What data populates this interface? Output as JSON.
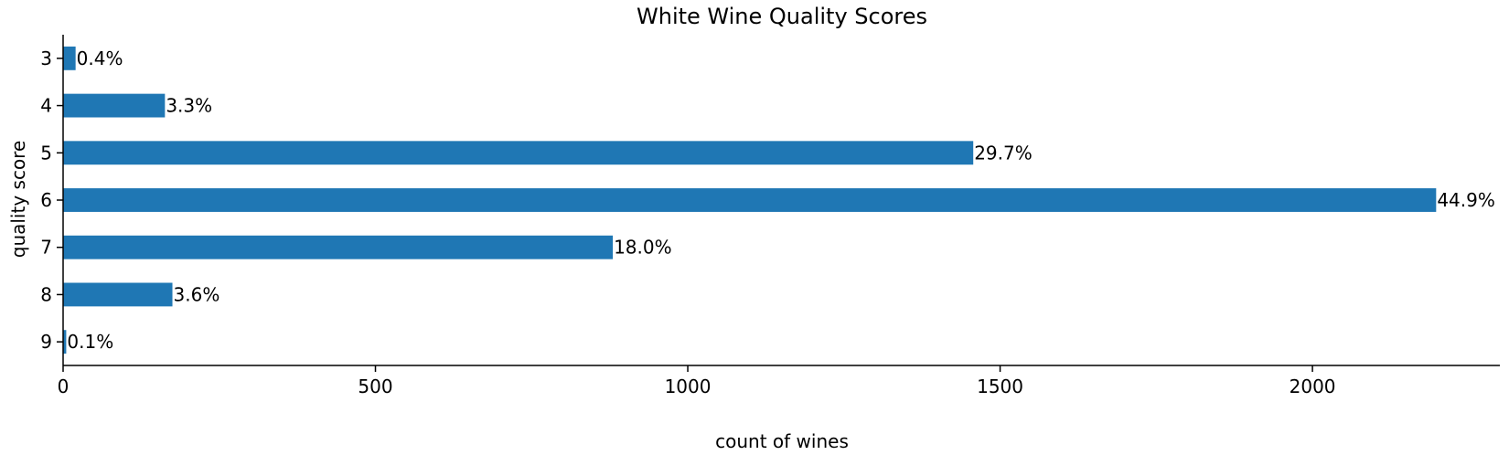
{
  "chart_data": {
    "type": "bar",
    "orientation": "horizontal",
    "title": "White Wine Quality Scores",
    "xlabel": "count of wines",
    "ylabel": "quality score",
    "categories": [
      "3",
      "4",
      "5",
      "6",
      "7",
      "8",
      "9"
    ],
    "values": [
      20,
      163,
      1457,
      2198,
      880,
      175,
      5
    ],
    "data_labels": [
      "0.4%",
      "3.3%",
      "29.7%",
      "44.9%",
      "18.0%",
      "3.6%",
      "0.1%"
    ],
    "xlim": [
      0,
      2300
    ],
    "xticks": [
      0,
      500,
      1000,
      1500,
      2000
    ],
    "xtick_labels": [
      "0",
      "500",
      "1000",
      "1500",
      "2000"
    ],
    "bar_color": "#1f77b4",
    "grid": false,
    "legend": "none"
  }
}
